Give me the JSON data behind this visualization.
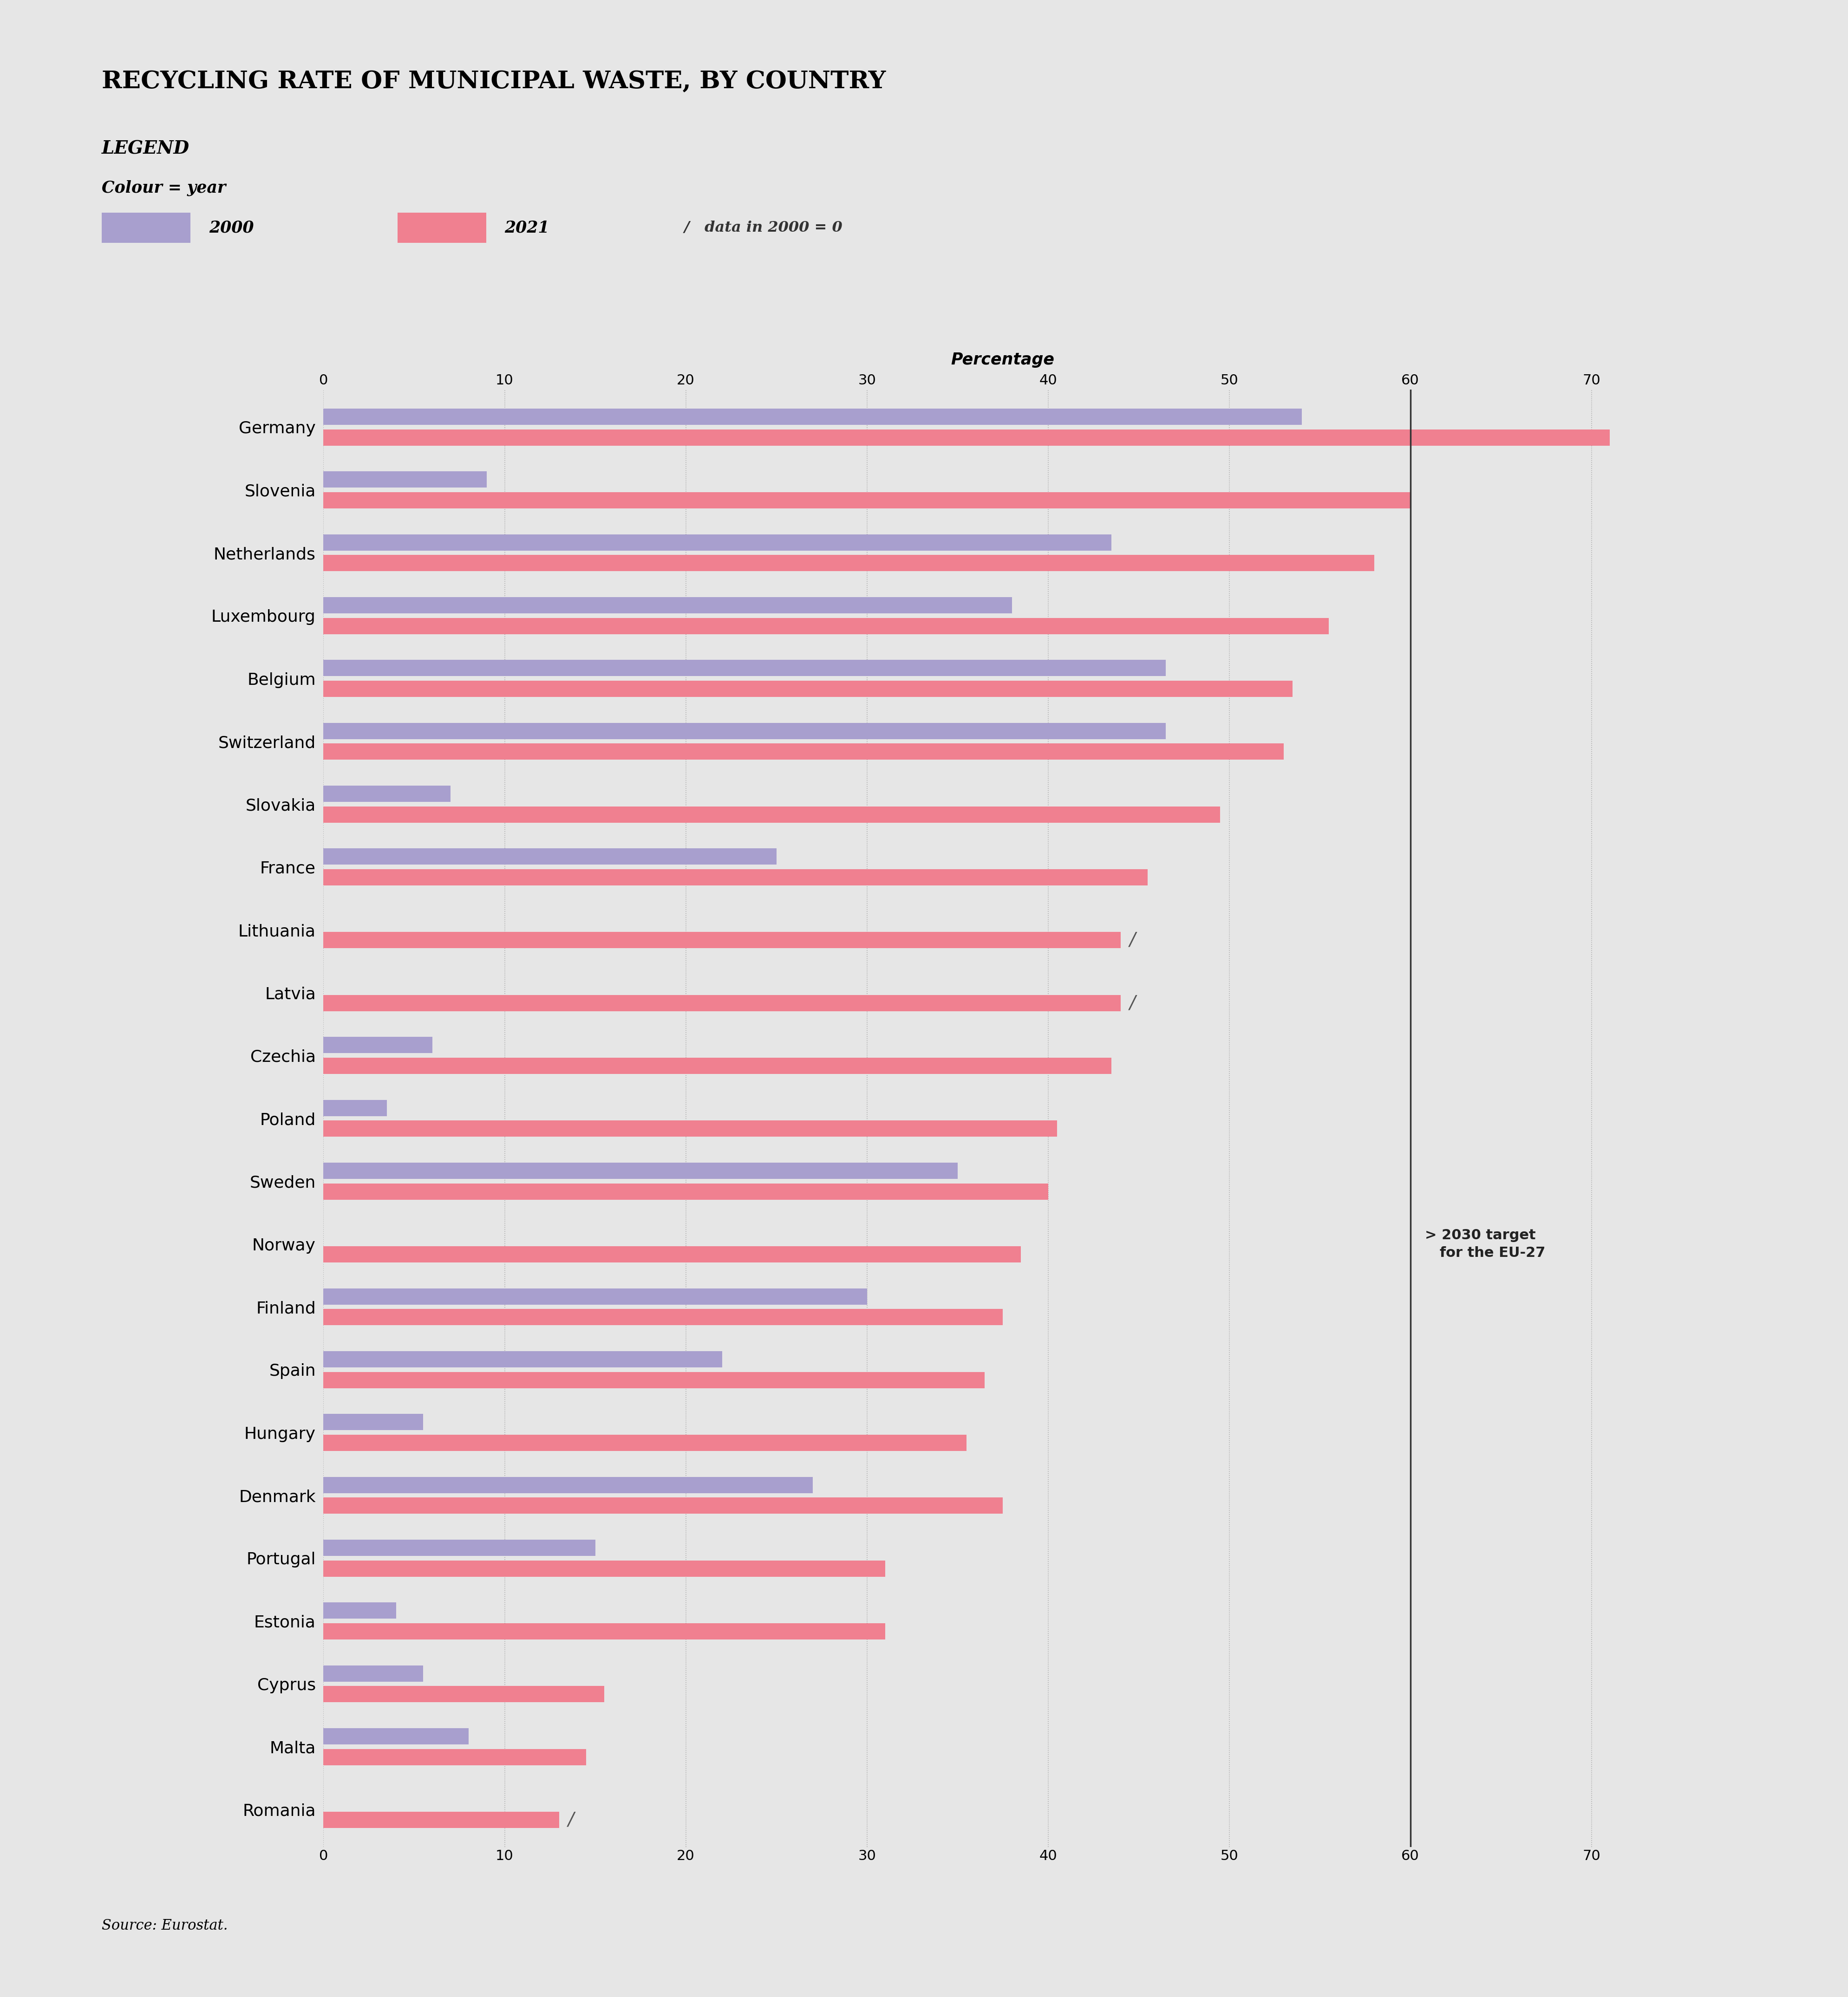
{
  "title": "RECYCLING RATE OF MUNICIPAL WASTE, BY COUNTRY",
  "background_color": "#e6e6e6",
  "color_2000": "#a89fce",
  "color_2021": "#f08090",
  "countries": [
    "Germany",
    "Slovenia",
    "Netherlands",
    "Luxembourg",
    "Belgium",
    "Switzerland",
    "Slovakia",
    "France",
    "Lithuania",
    "Latvia",
    "Czechia",
    "Poland",
    "Sweden",
    "Norway",
    "Finland",
    "Spain",
    "Hungary",
    "Denmark",
    "Portugal",
    "Estonia",
    "Cyprus",
    "Malta",
    "Romania"
  ],
  "values_2000": [
    54.0,
    9.0,
    43.5,
    38.0,
    46.5,
    46.5,
    7.0,
    25.0,
    0.0,
    0.0,
    6.0,
    3.5,
    35.0,
    0.0,
    30.0,
    22.0,
    5.5,
    27.0,
    15.0,
    4.0,
    5.5,
    8.0,
    0.0
  ],
  "values_2021": [
    71.0,
    60.0,
    58.0,
    55.5,
    53.5,
    53.0,
    49.5,
    45.5,
    44.0,
    44.0,
    43.5,
    40.5,
    40.0,
    38.5,
    37.5,
    36.5,
    35.5,
    37.5,
    31.0,
    31.0,
    15.5,
    14.5,
    13.0
  ],
  "zero_in_2000": [
    false,
    false,
    false,
    false,
    false,
    false,
    false,
    false,
    true,
    true,
    false,
    false,
    false,
    true,
    false,
    false,
    false,
    false,
    false,
    false,
    false,
    false,
    true
  ],
  "target_line": 60,
  "xlim_max": 75,
  "xticks": [
    0,
    10,
    20,
    30,
    40,
    50,
    60,
    70
  ],
  "source_text": "Source: Eurostat.",
  "target_label_line1": "> 2030 target",
  "target_label_line2": "   for the EU-27"
}
